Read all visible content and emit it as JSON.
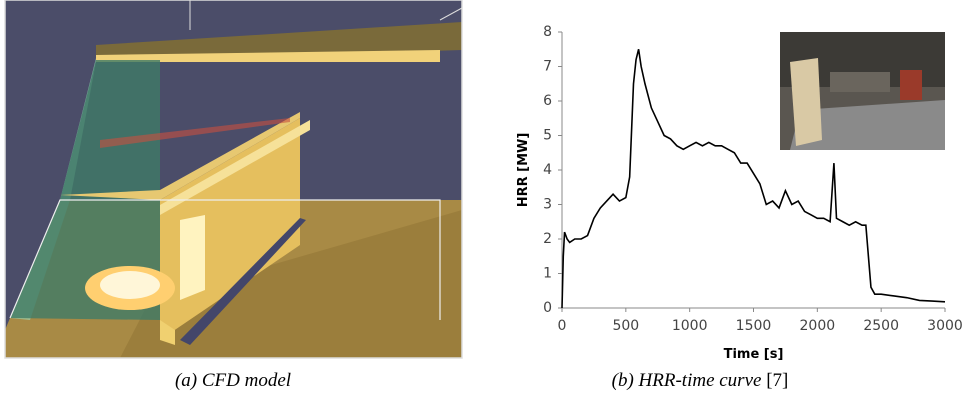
{
  "figure_a": {
    "caption": "(a) CFD model"
  },
  "chart_data": {
    "type": "line",
    "caption": "(b) HRR-time curve",
    "reference": "[7]",
    "x_label": "Time [s]",
    "y_label": "HRR [MW]",
    "xlim": [
      0,
      3000
    ],
    "ylim": [
      0,
      8
    ],
    "xticks": [
      0,
      500,
      1000,
      1500,
      2000,
      2500,
      3000
    ],
    "yticks": [
      0,
      1,
      2,
      3,
      4,
      5,
      6,
      7,
      8
    ],
    "series": [
      {
        "color": "#000000",
        "x": [
          0,
          10,
          20,
          40,
          60,
          100,
          150,
          200,
          250,
          300,
          350,
          400,
          450,
          500,
          530,
          560,
          580,
          600,
          620,
          650,
          700,
          750,
          800,
          850,
          900,
          950,
          1000,
          1050,
          1100,
          1150,
          1200,
          1250,
          1300,
          1350,
          1400,
          1450,
          1500,
          1550,
          1600,
          1650,
          1700,
          1750,
          1800,
          1850,
          1900,
          1950,
          2000,
          2050,
          2100,
          2130,
          2150,
          2200,
          2250,
          2300,
          2350,
          2380,
          2400,
          2420,
          2450,
          2500,
          2600,
          2700,
          2800,
          2900,
          3000
        ],
        "values": [
          0,
          1.5,
          2.2,
          2.0,
          1.9,
          2.0,
          2.0,
          2.1,
          2.6,
          2.9,
          3.1,
          3.3,
          3.1,
          3.2,
          3.8,
          6.5,
          7.2,
          7.5,
          7.0,
          6.5,
          5.8,
          5.4,
          5.0,
          4.9,
          4.7,
          4.6,
          4.7,
          4.8,
          4.7,
          4.8,
          4.7,
          4.7,
          4.6,
          4.5,
          4.2,
          4.2,
          3.9,
          3.6,
          3.0,
          3.1,
          2.9,
          3.4,
          3.0,
          3.1,
          2.8,
          2.7,
          2.6,
          2.6,
          2.5,
          4.2,
          2.6,
          2.5,
          2.4,
          2.5,
          2.4,
          2.4,
          1.5,
          0.6,
          0.4,
          0.4,
          0.35,
          0.3,
          0.22,
          0.2,
          0.18
        ]
      }
    ]
  }
}
